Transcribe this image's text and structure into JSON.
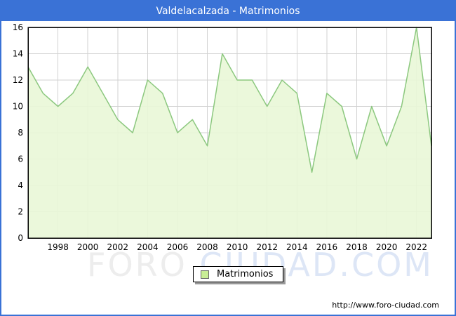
{
  "title": "Valdelacalzada - Matrimonios",
  "legend": {
    "label": "Matrimonios"
  },
  "watermark": {
    "left": "FORO",
    "right": "CIUDAD.COM"
  },
  "footer": {
    "url": "http://www.foro-ciudad.com"
  },
  "colors": {
    "frame_border": "#3a72d6",
    "title_bar": "#3a72d6",
    "title_text": "#ffffff",
    "plot_border": "#000000",
    "grid": "#d2d2d2",
    "area_fill": "#e9f7d7",
    "line": "#8cc87f",
    "legend_square": "#c9ee96",
    "tick_text": "#000000"
  },
  "chart_data": {
    "type": "area",
    "title": "Valdelacalzada - Matrimonios",
    "xlabel": "",
    "ylabel": "",
    "ylim": [
      0,
      16
    ],
    "grid": true,
    "legend_position": "bottom-center",
    "x": [
      1996,
      1997,
      1998,
      1999,
      2000,
      2001,
      2002,
      2003,
      2004,
      2005,
      2006,
      2007,
      2008,
      2009,
      2010,
      2011,
      2012,
      2013,
      2014,
      2015,
      2016,
      2017,
      2018,
      2019,
      2020,
      2021,
      2022,
      2023
    ],
    "series": [
      {
        "name": "Matrimonios",
        "values": [
          13,
          11,
          10,
          11,
          13,
          11,
          9,
          8,
          12,
          11,
          8,
          9,
          7,
          14,
          12,
          12,
          10,
          12,
          11,
          5,
          11,
          10,
          6,
          10,
          7,
          10,
          16,
          7
        ]
      }
    ],
    "y_ticks": [
      0,
      2,
      4,
      6,
      8,
      10,
      12,
      14,
      16
    ],
    "x_tick_labels": [
      1998,
      2000,
      2002,
      2004,
      2006,
      2008,
      2010,
      2012,
      2014,
      2016,
      2018,
      2020,
      2022
    ]
  }
}
